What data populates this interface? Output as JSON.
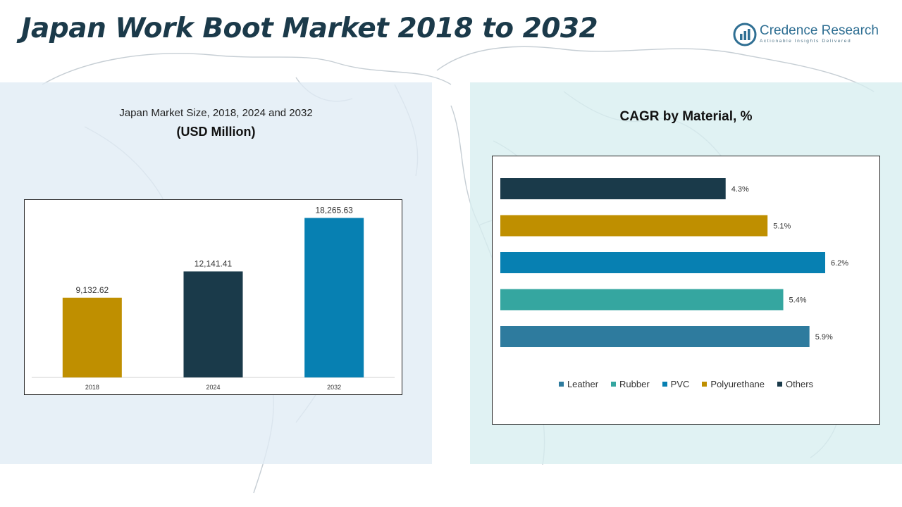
{
  "header": {
    "title": "Japan Work Boot Market 2018 to 2032",
    "brand_name": "Credence Research",
    "brand_tagline": "Actionable Insights Delivered"
  },
  "left_panel": {
    "subtitle": "Japan Market Size, 2018, 2024 and 2032",
    "unit": "(USD Million)"
  },
  "right_panel": {
    "title": "CAGR by Material, %"
  },
  "chart_data": [
    {
      "type": "bar",
      "orientation": "vertical",
      "title": "Japan Market Size, 2018, 2024 and 2032",
      "ylabel": "(USD Million)",
      "categories": [
        "2018",
        "2024",
        "2032"
      ],
      "values": [
        9132.62,
        12141.41,
        18265.63
      ],
      "data_labels": [
        "9,132.62",
        "12,141.41",
        "18,265.63"
      ],
      "colors": [
        "#bf8f00",
        "#1a3a4a",
        "#0780b2"
      ],
      "ylim": [
        0,
        20000
      ],
      "grid": false
    },
    {
      "type": "bar",
      "orientation": "horizontal",
      "title": "CAGR by Material, %",
      "categories": [
        "Others",
        "Polyurethane",
        "PVC",
        "Rubber",
        "Leather"
      ],
      "values": [
        4.3,
        5.1,
        6.2,
        5.4,
        5.9
      ],
      "data_labels": [
        "4.3%",
        "5.1%",
        "6.2%",
        "5.4%",
        "5.9%"
      ],
      "colors": [
        "#1a3a4a",
        "#bf8f00",
        "#0780b2",
        "#35a6a0",
        "#2e7b9e"
      ],
      "xlim": [
        0,
        6.2
      ],
      "legend": {
        "position": "bottom",
        "items": [
          {
            "label": "Leather",
            "color": "#2e7b9e"
          },
          {
            "label": "Rubber",
            "color": "#35a6a0"
          },
          {
            "label": "PVC",
            "color": "#0780b2"
          },
          {
            "label": "Polyurethane",
            "color": "#bf8f00"
          },
          {
            "label": "Others",
            "color": "#1a3a4a"
          }
        ]
      },
      "grid": false
    }
  ]
}
